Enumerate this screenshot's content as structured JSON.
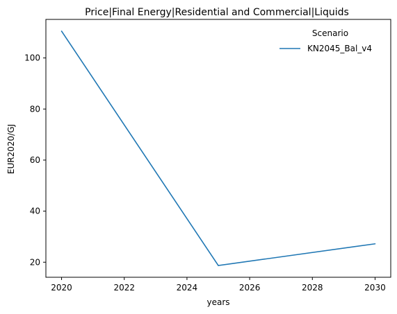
{
  "chart_data": {
    "type": "line",
    "title": "Price|Final Energy|Residential and Commercial|Liquids",
    "xlabel": "years",
    "ylabel": "EUR2020/GJ",
    "x": [
      2020,
      2025,
      2030
    ],
    "series": [
      {
        "name": "KN2045_Bal_v4",
        "values": [
          110.5,
          18.7,
          27.2
        ],
        "color": "#1f77b4"
      }
    ],
    "xlim": [
      2019.5,
      2030.5
    ],
    "ylim": [
      14.1,
      115.1
    ],
    "xticks": [
      2020,
      2022,
      2024,
      2026,
      2028,
      2030
    ],
    "yticks": [
      20,
      40,
      60,
      80,
      100
    ],
    "grid": false,
    "legend": {
      "title": "Scenario",
      "placement": "top-right"
    }
  }
}
